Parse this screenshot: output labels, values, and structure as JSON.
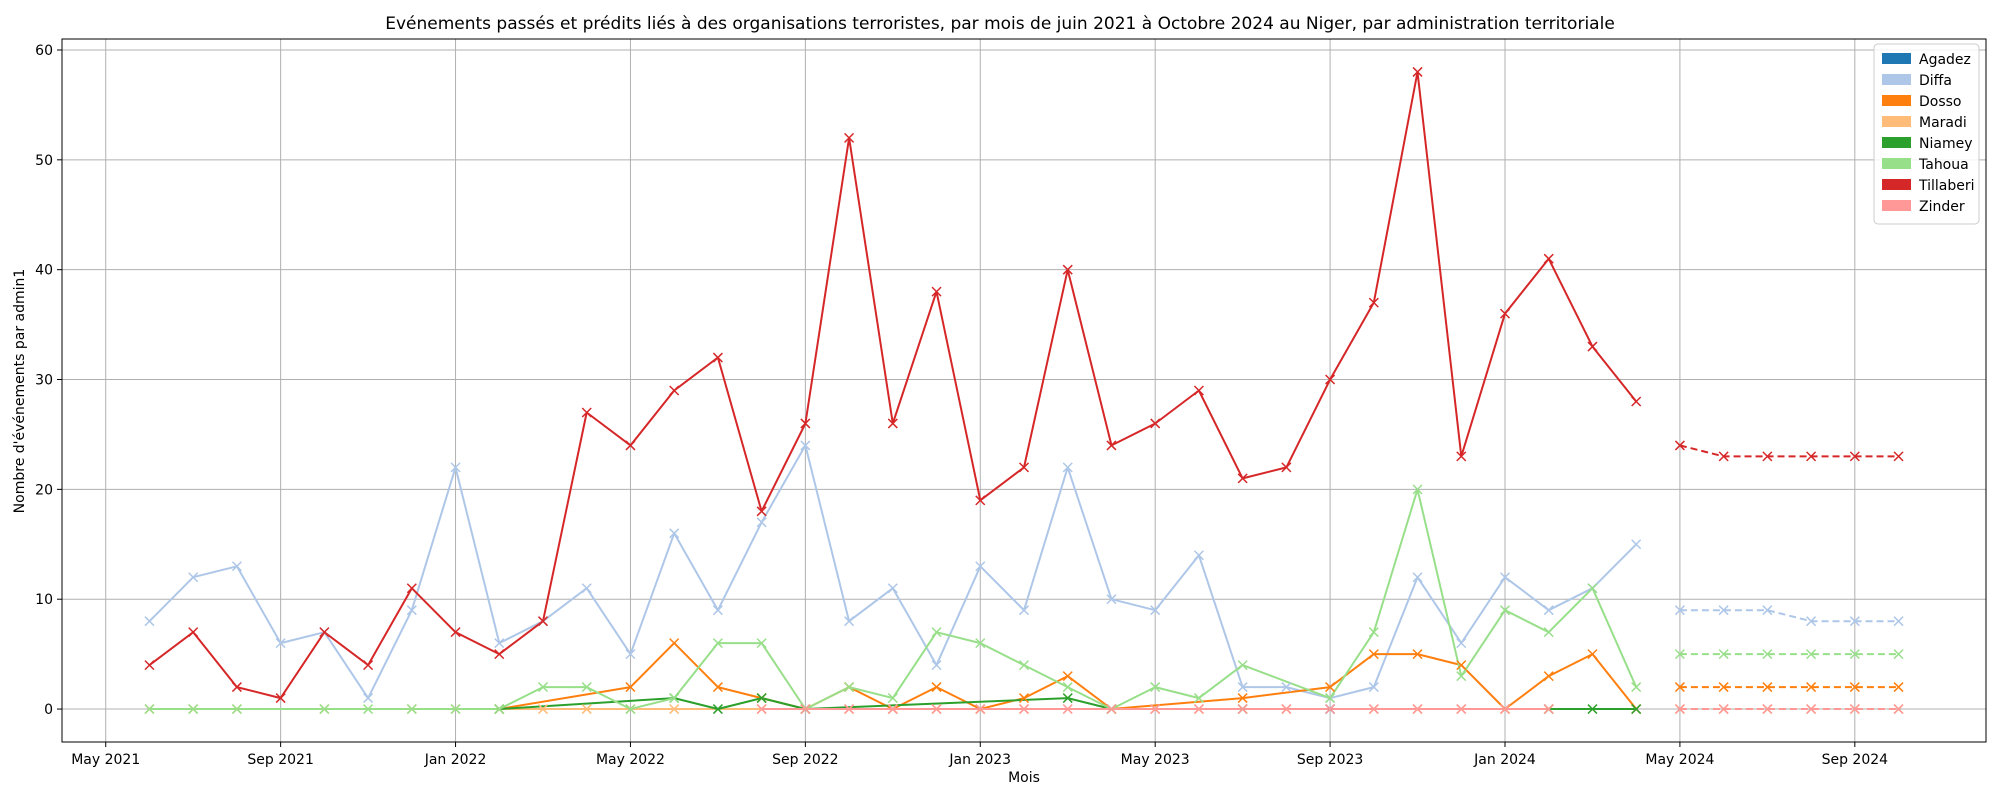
{
  "chart_data": {
    "type": "line",
    "title": "Evénements passés et prédits liés à des organisations terroristes, par mois de juin 2021 à Octobre 2024 au Niger, par administration territoriale",
    "xlabel": "Mois",
    "ylabel": "Nombre d'événements par admin1",
    "xlim": [
      "2021-04-01",
      "2024-12-01"
    ],
    "ylim": [
      -3,
      61
    ],
    "x_ticks": [
      "2021-05-01",
      "2021-09-01",
      "2022-01-01",
      "2022-05-01",
      "2022-09-01",
      "2023-01-01",
      "2023-05-01",
      "2023-09-01",
      "2024-01-01",
      "2024-05-01",
      "2024-09-01"
    ],
    "x_tick_labels": [
      "May 2021",
      "Sep 2021",
      "Jan 2022",
      "May 2022",
      "Sep 2022",
      "Jan 2023",
      "May 2023",
      "Sep 2023",
      "Jan 2024",
      "May 2024",
      "Sep 2024"
    ],
    "y_ticks": [
      0,
      10,
      20,
      30,
      40,
      50,
      60
    ],
    "grid": true,
    "legend_position": "top-right",
    "marker": "x",
    "series": [
      {
        "name": "Agadez",
        "color": "#1f77b4",
        "observed": [
          [
            "2023-09-01",
            0
          ]
        ],
        "predicted": []
      },
      {
        "name": "Diffa",
        "color": "#aec7e8",
        "observed": [
          [
            "2021-06-01",
            8
          ],
          [
            "2021-07-01",
            12
          ],
          [
            "2021-08-01",
            13
          ],
          [
            "2021-09-01",
            6
          ],
          [
            "2021-10-01",
            7
          ],
          [
            "2021-11-01",
            1
          ],
          [
            "2021-12-01",
            9
          ],
          [
            "2022-01-01",
            22
          ],
          [
            "2022-02-01",
            6
          ],
          [
            "2022-03-01",
            8
          ],
          [
            "2022-04-01",
            11
          ],
          [
            "2022-05-01",
            5
          ],
          [
            "2022-06-01",
            16
          ],
          [
            "2022-07-01",
            9
          ],
          [
            "2022-08-01",
            17
          ],
          [
            "2022-09-01",
            24
          ],
          [
            "2022-10-01",
            8
          ],
          [
            "2022-11-01",
            11
          ],
          [
            "2022-12-01",
            4
          ],
          [
            "2023-01-01",
            13
          ],
          [
            "2023-02-01",
            9
          ],
          [
            "2023-03-01",
            22
          ],
          [
            "2023-04-01",
            10
          ],
          [
            "2023-05-01",
            9
          ],
          [
            "2023-06-01",
            14
          ],
          [
            "2023-07-01",
            2
          ],
          [
            "2023-08-01",
            2
          ],
          [
            "2023-09-01",
            1
          ],
          [
            "2023-10-01",
            2
          ],
          [
            "2023-11-01",
            12
          ],
          [
            "2023-12-01",
            6
          ],
          [
            "2024-01-01",
            12
          ],
          [
            "2024-02-01",
            9
          ],
          [
            "2024-03-01",
            11
          ],
          [
            "2024-04-01",
            15
          ]
        ],
        "predicted": [
          [
            "2024-05-01",
            9
          ],
          [
            "2024-06-01",
            9
          ],
          [
            "2024-07-01",
            9
          ],
          [
            "2024-08-01",
            8
          ],
          [
            "2024-09-01",
            8
          ],
          [
            "2024-10-01",
            8
          ]
        ]
      },
      {
        "name": "Dosso",
        "color": "#ff7f0e",
        "observed": [
          [
            "2022-02-01",
            0
          ],
          [
            "2022-05-01",
            2
          ],
          [
            "2022-06-01",
            6
          ],
          [
            "2022-07-01",
            2
          ],
          [
            "2022-08-01",
            1
          ],
          [
            "2022-09-01",
            0
          ],
          [
            "2022-10-01",
            2
          ],
          [
            "2022-11-01",
            0
          ],
          [
            "2022-12-01",
            2
          ],
          [
            "2023-01-01",
            0
          ],
          [
            "2023-02-01",
            1
          ],
          [
            "2023-03-01",
            3
          ],
          [
            "2023-04-01",
            0
          ],
          [
            "2023-07-01",
            1
          ],
          [
            "2023-09-01",
            2
          ],
          [
            "2023-10-01",
            5
          ],
          [
            "2023-11-01",
            5
          ],
          [
            "2023-12-01",
            4
          ],
          [
            "2024-01-01",
            0
          ],
          [
            "2024-02-01",
            3
          ],
          [
            "2024-03-01",
            5
          ],
          [
            "2024-04-01",
            0
          ]
        ],
        "predicted": [
          [
            "2024-05-01",
            2
          ],
          [
            "2024-06-01",
            2
          ],
          [
            "2024-07-01",
            2
          ],
          [
            "2024-08-01",
            2
          ],
          [
            "2024-09-01",
            2
          ],
          [
            "2024-10-01",
            2
          ]
        ]
      },
      {
        "name": "Maradi",
        "color": "#ffbb78",
        "observed": [
          [
            "2021-06-01",
            0
          ],
          [
            "2021-07-01",
            0
          ],
          [
            "2021-08-01",
            0
          ],
          [
            "2021-10-01",
            0
          ],
          [
            "2021-12-01",
            0
          ],
          [
            "2022-01-01",
            0
          ],
          [
            "2022-03-01",
            0
          ],
          [
            "2022-04-01",
            0
          ],
          [
            "2022-05-01",
            0
          ],
          [
            "2022-06-01",
            0
          ],
          [
            "2022-08-01",
            0
          ],
          [
            "2022-09-01",
            0
          ],
          [
            "2022-10-01",
            0
          ],
          [
            "2022-11-01",
            0
          ],
          [
            "2022-12-01",
            0
          ],
          [
            "2023-01-01",
            0
          ],
          [
            "2023-02-01",
            0
          ],
          [
            "2023-04-01",
            0
          ],
          [
            "2023-05-01",
            0
          ],
          [
            "2023-06-01",
            0
          ],
          [
            "2023-08-01",
            0
          ],
          [
            "2023-10-01",
            0
          ],
          [
            "2023-11-01",
            0
          ],
          [
            "2023-12-01",
            0
          ],
          [
            "2024-01-01",
            0
          ],
          [
            "2024-02-01",
            0
          ]
        ],
        "predicted": [
          [
            "2024-05-01",
            0
          ],
          [
            "2024-06-01",
            0
          ],
          [
            "2024-07-01",
            0
          ],
          [
            "2024-08-01",
            0
          ],
          [
            "2024-09-01",
            0
          ],
          [
            "2024-10-01",
            0
          ]
        ]
      },
      {
        "name": "Niamey",
        "color": "#2ca02c",
        "observed": [
          [
            "2022-02-01",
            0
          ],
          [
            "2022-06-01",
            1
          ],
          [
            "2022-07-01",
            0
          ],
          [
            "2022-08-01",
            1
          ],
          [
            "2022-09-01",
            0
          ],
          [
            "2023-03-01",
            1
          ],
          [
            "2023-04-01",
            0
          ],
          [
            "2023-07-01",
            0
          ],
          [
            "2024-02-01",
            0
          ],
          [
            "2024-03-01",
            0
          ],
          [
            "2024-04-01",
            0
          ]
        ],
        "predicted": []
      },
      {
        "name": "Tahoua",
        "color": "#98df8a",
        "observed": [
          [
            "2021-06-01",
            0
          ],
          [
            "2021-07-01",
            0
          ],
          [
            "2021-08-01",
            0
          ],
          [
            "2021-10-01",
            0
          ],
          [
            "2021-11-01",
            0
          ],
          [
            "2021-12-01",
            0
          ],
          [
            "2022-01-01",
            0
          ],
          [
            "2022-02-01",
            0
          ],
          [
            "2022-03-01",
            2
          ],
          [
            "2022-04-01",
            2
          ],
          [
            "2022-05-01",
            0
          ],
          [
            "2022-06-01",
            1
          ],
          [
            "2022-07-01",
            6
          ],
          [
            "2022-08-01",
            6
          ],
          [
            "2022-09-01",
            0
          ],
          [
            "2022-10-01",
            2
          ],
          [
            "2022-11-01",
            1
          ],
          [
            "2022-12-01",
            7
          ],
          [
            "2023-01-01",
            6
          ],
          [
            "2023-02-01",
            4
          ],
          [
            "2023-03-01",
            2
          ],
          [
            "2023-04-01",
            0
          ],
          [
            "2023-05-01",
            2
          ],
          [
            "2023-06-01",
            1
          ],
          [
            "2023-07-01",
            4
          ],
          [
            "2023-09-01",
            1
          ],
          [
            "2023-10-01",
            7
          ],
          [
            "2023-11-01",
            20
          ],
          [
            "2023-12-01",
            3
          ],
          [
            "2024-01-01",
            9
          ],
          [
            "2024-02-01",
            7
          ],
          [
            "2024-03-01",
            11
          ],
          [
            "2024-04-01",
            2
          ]
        ],
        "predicted": [
          [
            "2024-05-01",
            5
          ],
          [
            "2024-06-01",
            5
          ],
          [
            "2024-07-01",
            5
          ],
          [
            "2024-08-01",
            5
          ],
          [
            "2024-09-01",
            5
          ],
          [
            "2024-10-01",
            5
          ]
        ]
      },
      {
        "name": "Tillaberi",
        "color": "#d62728",
        "observed": [
          [
            "2021-06-01",
            4
          ],
          [
            "2021-07-01",
            7
          ],
          [
            "2021-08-01",
            2
          ],
          [
            "2021-09-01",
            1
          ],
          [
            "2021-10-01",
            7
          ],
          [
            "2021-11-01",
            4
          ],
          [
            "2021-12-01",
            11
          ],
          [
            "2022-01-01",
            7
          ],
          [
            "2022-02-01",
            5
          ],
          [
            "2022-03-01",
            8
          ],
          [
            "2022-04-01",
            27
          ],
          [
            "2022-05-01",
            24
          ],
          [
            "2022-06-01",
            29
          ],
          [
            "2022-07-01",
            32
          ],
          [
            "2022-08-01",
            18
          ],
          [
            "2022-09-01",
            26
          ],
          [
            "2022-10-01",
            52
          ],
          [
            "2022-11-01",
            26
          ],
          [
            "2022-12-01",
            38
          ],
          [
            "2023-01-01",
            19
          ],
          [
            "2023-02-01",
            22
          ],
          [
            "2023-03-01",
            40
          ],
          [
            "2023-04-01",
            24
          ],
          [
            "2023-05-01",
            26
          ],
          [
            "2023-06-01",
            29
          ],
          [
            "2023-07-01",
            21
          ],
          [
            "2023-08-01",
            22
          ],
          [
            "2023-09-01",
            30
          ],
          [
            "2023-10-01",
            37
          ],
          [
            "2023-11-01",
            58
          ],
          [
            "2023-12-01",
            23
          ],
          [
            "2024-01-01",
            36
          ],
          [
            "2024-02-01",
            41
          ],
          [
            "2024-03-01",
            33
          ],
          [
            "2024-04-01",
            28
          ]
        ],
        "predicted": [
          [
            "2024-05-01",
            24
          ],
          [
            "2024-06-01",
            23
          ],
          [
            "2024-07-01",
            23
          ],
          [
            "2024-08-01",
            23
          ],
          [
            "2024-09-01",
            23
          ],
          [
            "2024-10-01",
            23
          ]
        ]
      },
      {
        "name": "Zinder",
        "color": "#ff9896",
        "observed": [
          [
            "2022-08-01",
            0
          ],
          [
            "2022-09-01",
            0
          ],
          [
            "2022-10-01",
            0
          ],
          [
            "2022-11-01",
            0
          ],
          [
            "2022-12-01",
            0
          ],
          [
            "2023-01-01",
            0
          ],
          [
            "2023-02-01",
            0
          ],
          [
            "2023-03-01",
            0
          ],
          [
            "2023-04-01",
            0
          ],
          [
            "2023-05-01",
            0
          ],
          [
            "2023-06-01",
            0
          ],
          [
            "2023-07-01",
            0
          ],
          [
            "2023-08-01",
            0
          ],
          [
            "2023-09-01",
            0
          ],
          [
            "2023-10-01",
            0
          ],
          [
            "2023-11-01",
            0
          ],
          [
            "2023-12-01",
            0
          ],
          [
            "2024-01-01",
            0
          ],
          [
            "2024-02-01",
            0
          ]
        ],
        "predicted": [
          [
            "2024-05-01",
            0
          ],
          [
            "2024-06-01",
            0
          ],
          [
            "2024-07-01",
            0
          ],
          [
            "2024-08-01",
            0
          ],
          [
            "2024-09-01",
            0
          ],
          [
            "2024-10-01",
            0
          ]
        ]
      }
    ]
  }
}
